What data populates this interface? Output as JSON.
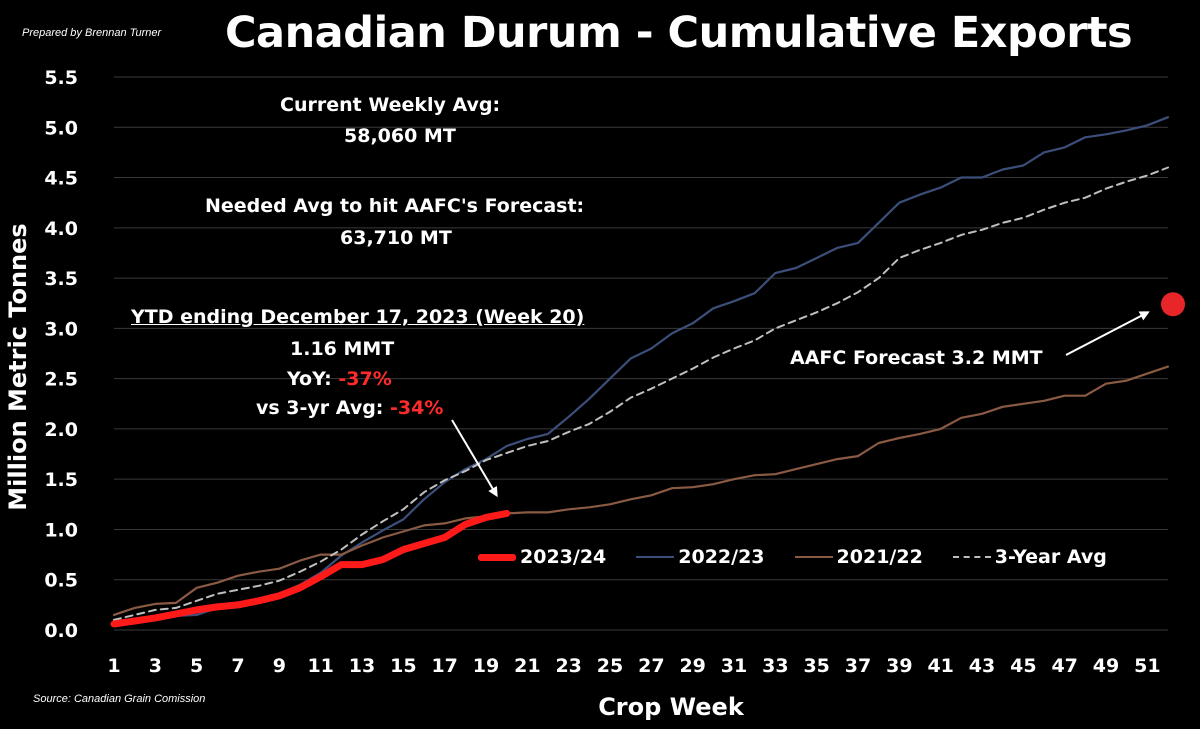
{
  "header": {
    "prepared_by": "Prepared by Brennan Turner",
    "title": "Canadian Durum - Cumulative Exports"
  },
  "footer": {
    "source": "Source: Canadian Grain Comission"
  },
  "annotations": {
    "weekly_label": "Current Weekly Avg:",
    "weekly_value": "58,060 MT",
    "needed_label": "Needed Avg to hit AAFC's Forecast:",
    "needed_value": "63,710 MT",
    "ytd_title": "YTD ending December 17, 2023 (Week 20)",
    "ytd_value": "1.16 MMT",
    "yoy_label": "YoY:",
    "yoy_value": "-37%",
    "vs3yr_label": "vs 3-yr Avg:",
    "vs3yr_value": "-34%",
    "forecast_label": "AAFC Forecast 3.2 MMT"
  },
  "colors": {
    "background": "#000000",
    "grid": "#3a3a3a",
    "s2023_24": "#ff1a1a",
    "s2022_23": "#3b4f7a",
    "s2021_22": "#8a5a44",
    "avg3yr": "#bfbfbf",
    "forecast_dot": "#e8262a"
  },
  "chart_data": {
    "type": "line",
    "title": "Canadian Durum - Cumulative Exports",
    "xlabel": "Crop Week",
    "ylabel": "Million Metric Tonnes",
    "xlim": [
      1,
      52
    ],
    "ylim": [
      0,
      5.5
    ],
    "x_tick_labels": [
      "1",
      "3",
      "5",
      "7",
      "9",
      "11",
      "13",
      "15",
      "17",
      "19",
      "21",
      "23",
      "25",
      "27",
      "29",
      "31",
      "33",
      "35",
      "37",
      "39",
      "41",
      "43",
      "45",
      "47",
      "49",
      "51"
    ],
    "y_tick_labels": [
      "0.0",
      "0.5",
      "1.0",
      "1.5",
      "2.0",
      "2.5",
      "3.0",
      "3.5",
      "4.0",
      "4.5",
      "5.0",
      "5.5"
    ],
    "grid": true,
    "legend": "bottom-center",
    "series": [
      {
        "name": "2023/24",
        "style": "solid-thick",
        "x": [
          1,
          2,
          3,
          4,
          5,
          6,
          7,
          8,
          9,
          10,
          11,
          12,
          13,
          14,
          15,
          16,
          17,
          18,
          19,
          20
        ],
        "values": [
          0.06,
          0.09,
          0.12,
          0.16,
          0.2,
          0.23,
          0.25,
          0.29,
          0.34,
          0.42,
          0.53,
          0.65,
          0.65,
          0.7,
          0.8,
          0.86,
          0.92,
          1.05,
          1.12,
          1.16
        ]
      },
      {
        "name": "2022/23",
        "style": "solid",
        "x": [
          1,
          2,
          3,
          4,
          5,
          6,
          7,
          8,
          9,
          10,
          11,
          12,
          13,
          14,
          15,
          16,
          17,
          18,
          19,
          20,
          21,
          22,
          23,
          24,
          25,
          26,
          27,
          28,
          29,
          30,
          31,
          32,
          33,
          34,
          35,
          36,
          37,
          38,
          39,
          40,
          41,
          42,
          43,
          44,
          45,
          46,
          47,
          48,
          49,
          50,
          51,
          52
        ],
        "values": [
          0.04,
          0.07,
          0.11,
          0.14,
          0.15,
          0.22,
          0.27,
          0.3,
          0.36,
          0.45,
          0.57,
          0.74,
          0.87,
          0.99,
          1.1,
          1.3,
          1.47,
          1.6,
          1.7,
          1.83,
          1.9,
          1.95,
          2.12,
          2.3,
          2.5,
          2.7,
          2.8,
          2.95,
          3.05,
          3.2,
          3.27,
          3.35,
          3.55,
          3.6,
          3.7,
          3.8,
          3.85,
          4.05,
          4.25,
          4.33,
          4.4,
          4.5,
          4.5,
          4.58,
          4.62,
          4.75,
          4.8,
          4.9,
          4.93,
          4.97,
          5.02,
          5.1
        ]
      },
      {
        "name": "2021/22",
        "style": "solid",
        "x": [
          1,
          2,
          3,
          4,
          5,
          6,
          7,
          8,
          9,
          10,
          11,
          12,
          13,
          14,
          15,
          16,
          17,
          18,
          19,
          20,
          21,
          22,
          23,
          24,
          25,
          26,
          27,
          28,
          29,
          30,
          31,
          32,
          33,
          34,
          35,
          36,
          37,
          38,
          39,
          40,
          41,
          42,
          43,
          44,
          45,
          46,
          47,
          48,
          49,
          50,
          51,
          52
        ],
        "values": [
          0.15,
          0.22,
          0.26,
          0.27,
          0.42,
          0.47,
          0.54,
          0.58,
          0.61,
          0.69,
          0.75,
          0.75,
          0.84,
          0.92,
          0.98,
          1.04,
          1.06,
          1.11,
          1.13,
          1.16,
          1.17,
          1.17,
          1.2,
          1.22,
          1.25,
          1.3,
          1.34,
          1.41,
          1.42,
          1.45,
          1.5,
          1.54,
          1.55,
          1.6,
          1.65,
          1.7,
          1.73,
          1.86,
          1.91,
          1.95,
          2.0,
          2.11,
          2.15,
          2.22,
          2.25,
          2.28,
          2.33,
          2.33,
          2.45,
          2.48,
          2.55,
          2.62
        ]
      },
      {
        "name": "3-Year Avg",
        "style": "dashed",
        "x": [
          1,
          2,
          3,
          4,
          5,
          6,
          7,
          8,
          9,
          10,
          11,
          12,
          13,
          14,
          15,
          16,
          17,
          18,
          19,
          20,
          21,
          22,
          23,
          24,
          25,
          26,
          27,
          28,
          29,
          30,
          31,
          32,
          33,
          34,
          35,
          36,
          37,
          38,
          39,
          40,
          41,
          42,
          43,
          44,
          45,
          46,
          47,
          48,
          49,
          50,
          51,
          52
        ],
        "values": [
          0.1,
          0.15,
          0.2,
          0.22,
          0.29,
          0.36,
          0.4,
          0.44,
          0.49,
          0.58,
          0.68,
          0.8,
          0.95,
          1.08,
          1.2,
          1.37,
          1.49,
          1.58,
          1.69,
          1.76,
          1.83,
          1.88,
          1.97,
          2.05,
          2.17,
          2.31,
          2.4,
          2.5,
          2.6,
          2.71,
          2.8,
          2.88,
          3.0,
          3.08,
          3.16,
          3.25,
          3.36,
          3.5,
          3.7,
          3.78,
          3.85,
          3.93,
          3.98,
          4.05,
          4.1,
          4.18,
          4.25,
          4.3,
          4.39,
          4.46,
          4.52,
          4.6
        ]
      }
    ],
    "forecast_point": {
      "x": 52,
      "value": 3.22
    }
  }
}
